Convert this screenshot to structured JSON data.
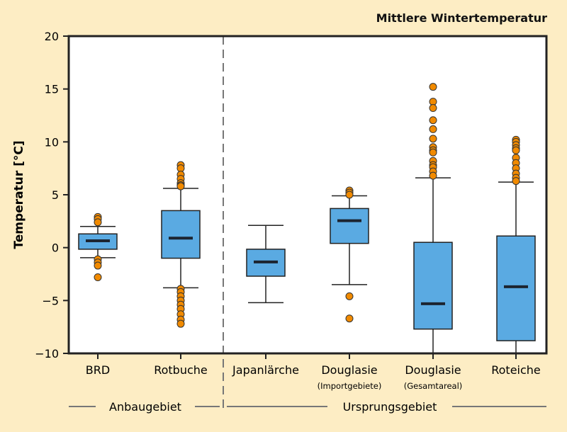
{
  "chart_data": {
    "type": "box",
    "title": "Mittlere Wintertemperatur",
    "ylabel": "Temperatur [°C]",
    "ylim": [
      -10,
      20
    ],
    "yticks": [
      -10,
      -5,
      0,
      5,
      10,
      15,
      20
    ],
    "ytick_labels": [
      "−10",
      "−5",
      "0",
      "5",
      "10",
      "15",
      "20"
    ],
    "groups": [
      {
        "label": "Anbaugebiet"
      },
      {
        "label": "Ursprungsgebiet"
      }
    ],
    "categories": [
      {
        "label": "BRD",
        "sublabel": "",
        "group": 0,
        "whisker_low": -0.95,
        "q1": -0.15,
        "median": 0.65,
        "q3": 1.3,
        "whisker_high": 2.0,
        "outliers": [
          2.9,
          2.7,
          2.4,
          -1.1,
          -1.4,
          -1.7,
          -2.8
        ]
      },
      {
        "label": "Rotbuche",
        "sublabel": "",
        "group": 0,
        "whisker_low": -3.8,
        "q1": -1.0,
        "median": 0.9,
        "q3": 3.5,
        "whisker_high": 5.6,
        "outliers": [
          7.8,
          7.5,
          6.9,
          6.5,
          6.1,
          5.9,
          5.8,
          -3.9,
          -4.2,
          -4.6,
          -5.0,
          -5.4,
          -5.8,
          -6.3,
          -6.8,
          -7.2
        ]
      },
      {
        "label": "Japanlärche",
        "sublabel": "",
        "group": 1,
        "whisker_low": -5.2,
        "q1": -2.7,
        "median": -1.35,
        "q3": -0.15,
        "whisker_high": 2.1,
        "outliers": []
      },
      {
        "label": "Douglasie",
        "sublabel": "(Importgebiete)",
        "group": 1,
        "whisker_low": -3.5,
        "q1": 0.4,
        "median": 2.55,
        "q3": 3.7,
        "whisker_high": 4.9,
        "outliers": [
          5.4,
          5.2,
          5.0,
          -4.6,
          -6.7
        ]
      },
      {
        "label": "Douglasie",
        "sublabel": "(Gesamtareal)",
        "group": 1,
        "whisker_low": -10,
        "q1": -7.7,
        "median": -5.3,
        "q3": 0.5,
        "whisker_high": 6.6,
        "outliers": [
          15.2,
          13.8,
          13.2,
          12.05,
          11.2,
          10.3,
          9.5,
          9.2,
          9.0,
          8.2,
          7.8,
          7.6,
          7.2,
          6.8
        ]
      },
      {
        "label": "Roteiche",
        "sublabel": "",
        "group": 1,
        "whisker_low": -10,
        "q1": -8.8,
        "median": -3.7,
        "q3": 1.1,
        "whisker_high": 6.2,
        "outliers": [
          10.2,
          10.0,
          9.7,
          9.4,
          9.2,
          8.5,
          8.0,
          7.5,
          7.0,
          6.6,
          6.3
        ]
      }
    ],
    "colors": {
      "box": "#5aaae2",
      "outlier": "#f18a00",
      "background": "#fdedc4",
      "plot": "#ffffff"
    }
  }
}
